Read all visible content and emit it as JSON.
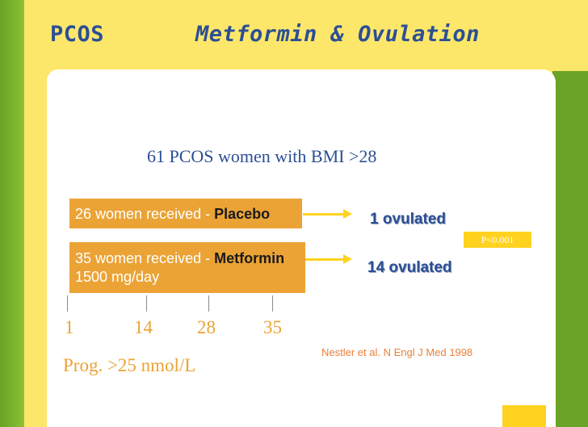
{
  "header": {
    "title_left": "PCOS",
    "title_right": "Metformin & Ovulation"
  },
  "subtitle": "61 PCOS women with BMI >28",
  "groups": [
    {
      "label_prefix": "26 women received - ",
      "drug": "Placebo",
      "dose": "",
      "result": "1 ovulated"
    },
    {
      "label_prefix": "35 women received - ",
      "drug": "Metformin",
      "dose": "1500 mg/day",
      "result": "14 ovulated"
    }
  ],
  "p_value": "P<0.001",
  "timeline": {
    "days": [
      "1",
      "14",
      "28",
      "35"
    ],
    "criterion": "Prog. >25 nmol/L"
  },
  "citation": "Nestler et al. N Engl J Med 1998",
  "colors": {
    "background": "#fde76a",
    "green": "#6aa325",
    "title_blue": "#2c4f94",
    "orange_box": "#eba336",
    "arrow_yellow": "#ffd21f",
    "citation_orange": "#eb7f3a"
  }
}
